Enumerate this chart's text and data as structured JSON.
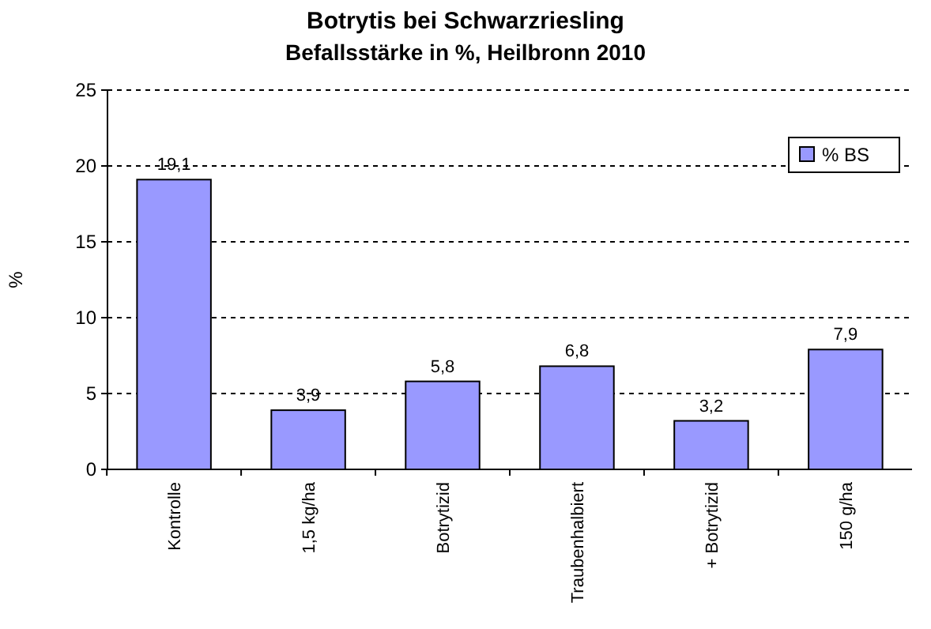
{
  "chart_data": {
    "type": "bar",
    "title": "Botrytis bei Schwarzriesling",
    "subtitle": "Befallsstärke in %, Heilbronn 2010",
    "ylabel": "%",
    "categories": [
      "Kontrolle",
      "1,5 kg/ha",
      "Botrytizid",
      "Traubenhalbiert",
      "+ Botrytizid",
      "150 g/ha"
    ],
    "series": [
      {
        "name": "% BS",
        "color": "#9999ff",
        "values": [
          19.1,
          3.9,
          5.8,
          6.8,
          3.2,
          7.9
        ]
      }
    ],
    "value_labels": [
      "19,1",
      "3,9",
      "5,8",
      "6,8",
      "3,2",
      "7,9"
    ],
    "ylim": [
      0,
      25
    ],
    "yticks": [
      0,
      5,
      10,
      15,
      20,
      25
    ],
    "grid": "y",
    "legend": "top right"
  }
}
